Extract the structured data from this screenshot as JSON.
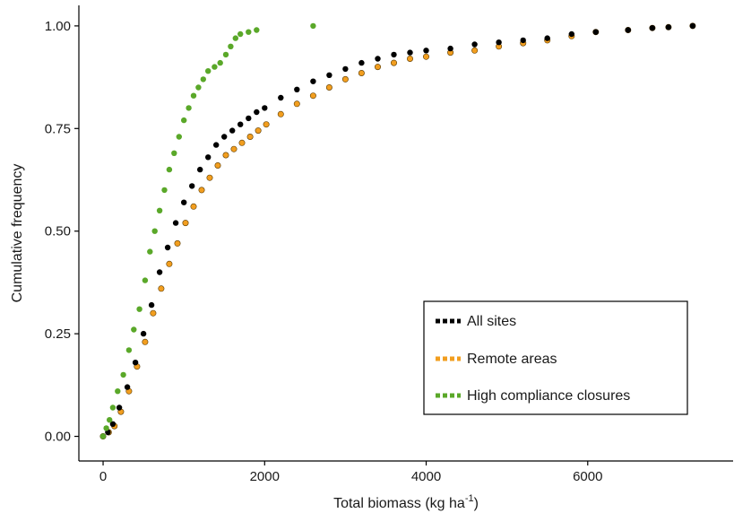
{
  "chart_data": {
    "type": "scatter",
    "xlabel": "Total biomass (kg ha",
    "xlabel_sup": "-1",
    "xlabel_close": ")",
    "ylabel": "Cumulative frequency",
    "xlim": [
      -300,
      7800
    ],
    "ylim": [
      -0.06,
      1.05
    ],
    "x_ticks": [
      0,
      2000,
      4000,
      6000
    ],
    "x_tick_labels": [
      "0",
      "2000",
      "4000",
      "6000"
    ],
    "y_ticks": [
      0,
      0.25,
      0.5,
      0.75,
      1.0
    ],
    "y_tick_labels": [
      "0.00",
      "0.25",
      "0.50",
      "0.75",
      "1.00"
    ],
    "grid": false,
    "legend_position": "bottom-right",
    "series": [
      {
        "name": "All sites",
        "color": "#000000",
        "points": [
          [
            0,
            0
          ],
          [
            60,
            0.01
          ],
          [
            120,
            0.03
          ],
          [
            200,
            0.07
          ],
          [
            300,
            0.12
          ],
          [
            400,
            0.18
          ],
          [
            500,
            0.25
          ],
          [
            600,
            0.32
          ],
          [
            700,
            0.4
          ],
          [
            800,
            0.46
          ],
          [
            900,
            0.52
          ],
          [
            1000,
            0.57
          ],
          [
            1100,
            0.61
          ],
          [
            1200,
            0.65
          ],
          [
            1300,
            0.68
          ],
          [
            1400,
            0.71
          ],
          [
            1500,
            0.73
          ],
          [
            1600,
            0.745
          ],
          [
            1700,
            0.76
          ],
          [
            1800,
            0.775
          ],
          [
            1900,
            0.79
          ],
          [
            2000,
            0.8
          ],
          [
            2200,
            0.825
          ],
          [
            2400,
            0.845
          ],
          [
            2600,
            0.865
          ],
          [
            2800,
            0.88
          ],
          [
            3000,
            0.895
          ],
          [
            3200,
            0.91
          ],
          [
            3400,
            0.92
          ],
          [
            3600,
            0.93
          ],
          [
            3800,
            0.935
          ],
          [
            4000,
            0.94
          ],
          [
            4300,
            0.945
          ],
          [
            4600,
            0.955
          ],
          [
            4900,
            0.96
          ],
          [
            5200,
            0.965
          ],
          [
            5500,
            0.97
          ],
          [
            5800,
            0.98
          ],
          [
            6100,
            0.985
          ],
          [
            6500,
            0.99
          ],
          [
            6800,
            0.995
          ],
          [
            7000,
            0.997
          ],
          [
            7300,
            1.0
          ]
        ]
      },
      {
        "name": "Remote areas",
        "color": "#f29e1f",
        "points": [
          [
            0,
            0
          ],
          [
            70,
            0.01
          ],
          [
            140,
            0.025
          ],
          [
            220,
            0.06
          ],
          [
            320,
            0.11
          ],
          [
            420,
            0.17
          ],
          [
            520,
            0.23
          ],
          [
            620,
            0.3
          ],
          [
            720,
            0.36
          ],
          [
            820,
            0.42
          ],
          [
            920,
            0.47
          ],
          [
            1020,
            0.52
          ],
          [
            1120,
            0.56
          ],
          [
            1220,
            0.6
          ],
          [
            1320,
            0.63
          ],
          [
            1420,
            0.66
          ],
          [
            1520,
            0.685
          ],
          [
            1620,
            0.7
          ],
          [
            1720,
            0.715
          ],
          [
            1820,
            0.73
          ],
          [
            1920,
            0.745
          ],
          [
            2020,
            0.76
          ],
          [
            2200,
            0.785
          ],
          [
            2400,
            0.81
          ],
          [
            2600,
            0.83
          ],
          [
            2800,
            0.85
          ],
          [
            3000,
            0.87
          ],
          [
            3200,
            0.885
          ],
          [
            3400,
            0.9
          ],
          [
            3600,
            0.91
          ],
          [
            3800,
            0.92
          ],
          [
            4000,
            0.925
          ],
          [
            4300,
            0.935
          ],
          [
            4600,
            0.94
          ],
          [
            4900,
            0.95
          ],
          [
            5200,
            0.958
          ],
          [
            5500,
            0.965
          ],
          [
            5800,
            0.975
          ],
          [
            6100,
            0.985
          ],
          [
            6500,
            0.99
          ],
          [
            6800,
            0.995
          ],
          [
            7000,
            0.997
          ],
          [
            7300,
            1.0
          ]
        ]
      },
      {
        "name": "High compliance closures",
        "color": "#5aa829",
        "points": [
          [
            0,
            0
          ],
          [
            40,
            0.02
          ],
          [
            80,
            0.04
          ],
          [
            120,
            0.07
          ],
          [
            180,
            0.11
          ],
          [
            250,
            0.15
          ],
          [
            320,
            0.21
          ],
          [
            380,
            0.26
          ],
          [
            450,
            0.31
          ],
          [
            520,
            0.38
          ],
          [
            580,
            0.45
          ],
          [
            640,
            0.5
          ],
          [
            700,
            0.55
          ],
          [
            760,
            0.6
          ],
          [
            820,
            0.65
          ],
          [
            880,
            0.69
          ],
          [
            940,
            0.73
          ],
          [
            1000,
            0.77
          ],
          [
            1060,
            0.8
          ],
          [
            1120,
            0.83
          ],
          [
            1180,
            0.85
          ],
          [
            1240,
            0.87
          ],
          [
            1300,
            0.89
          ],
          [
            1380,
            0.9
          ],
          [
            1450,
            0.91
          ],
          [
            1520,
            0.93
          ],
          [
            1580,
            0.95
          ],
          [
            1640,
            0.97
          ],
          [
            1700,
            0.98
          ],
          [
            1800,
            0.985
          ],
          [
            1900,
            0.99
          ],
          [
            2600,
            1.0
          ]
        ]
      }
    ]
  }
}
